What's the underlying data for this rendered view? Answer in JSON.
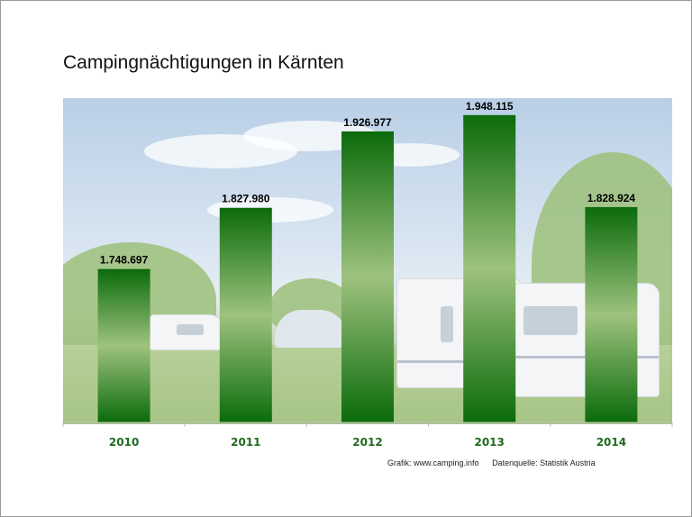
{
  "chart_data": {
    "type": "bar",
    "title": "Campingnächtigungen in Kärnten",
    "categories": [
      "2010",
      "2011",
      "2012",
      "2013",
      "2014"
    ],
    "values": [
      1748697,
      1827980,
      1926977,
      1948115,
      1828924
    ],
    "value_labels": [
      "1.748.697",
      "1.827.980",
      "1.926.977",
      "1.948.115",
      "1.828.924"
    ],
    "ylim": [
      1550000,
      1970000
    ],
    "grid": false,
    "legend": "none"
  },
  "colors": {
    "bar_dark": "#0b6b0b",
    "bar_light": "#9ec27f",
    "category_label": "#1f6b1f",
    "value_label": "#000000"
  },
  "footer": {
    "grafik": "Grafik: www.camping.info",
    "quelle": "Datenquelle: Statistik Austria"
  }
}
